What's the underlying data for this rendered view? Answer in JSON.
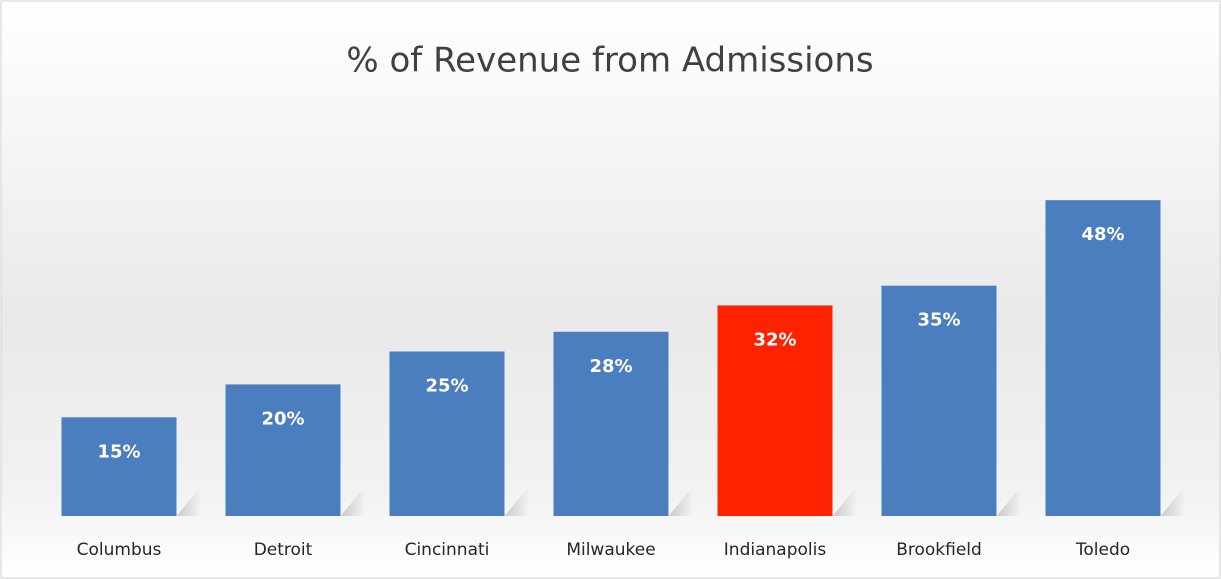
{
  "chart_data": {
    "type": "bar",
    "title": "% of Revenue from Admissions",
    "categories": [
      "Columbus",
      "Detroit",
      "Cincinnati",
      "Milwaukee",
      "Indianapolis",
      "Brookfield",
      "Toledo"
    ],
    "values": [
      15,
      20,
      25,
      28,
      32,
      35,
      48
    ],
    "value_labels": [
      "15%",
      "20%",
      "25%",
      "28%",
      "32%",
      "35%",
      "48%"
    ],
    "colors": [
      "#4a7ebf",
      "#4a7ebf",
      "#4a7ebf",
      "#4a7ebf",
      "#ff2200",
      "#4a7ebf",
      "#4a7ebf"
    ]
  }
}
